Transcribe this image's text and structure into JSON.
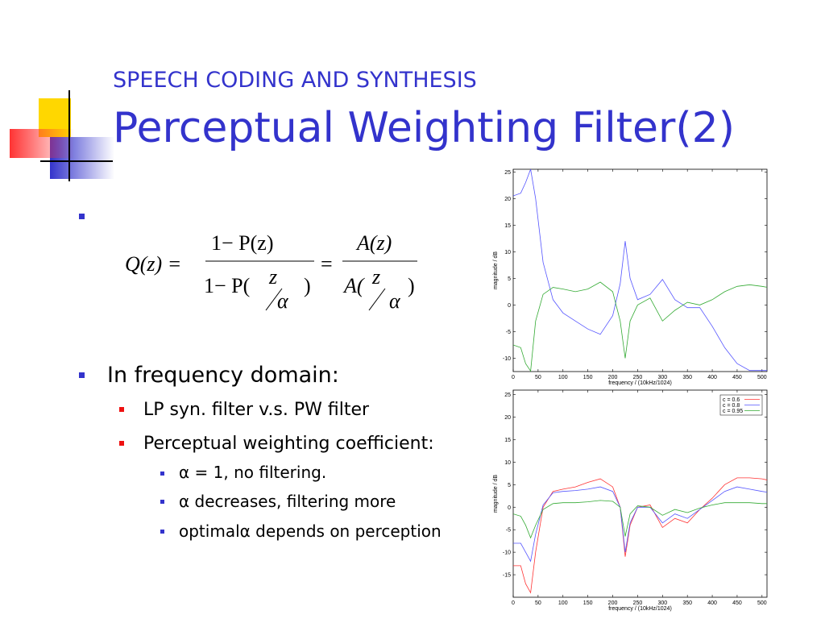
{
  "slide": {
    "subtitle": "SPEECH CODING AND SYNTHESIS",
    "title": "Perceptual Weighting Filter(2)",
    "formula": {
      "lhs": "Q(z) =",
      "num1": "1− P(z)",
      "den1_left": "1− P(",
      "z": "z",
      "alpha": "α",
      "close": ")",
      "eq": "=",
      "num2": "A(z)",
      "den2_left": "A("
    },
    "bullets": [
      {
        "text": "In frequency domain:",
        "children": [
          {
            "text": "LP syn. filter v.s. PW filter"
          },
          {
            "text": "Perceptual weighting coefficient:",
            "children": [
              {
                "text": "α = 1, no filtering."
              },
              {
                "text": "α decreases, filtering more"
              },
              {
                "text": "optimalα depends on perception"
              }
            ]
          }
        ]
      }
    ]
  },
  "chart_data": [
    {
      "type": "line",
      "xlabel": "frequency / (10kHz/1024)",
      "ylabel": "magnitude / dB",
      "x": [
        0,
        15,
        25,
        35,
        45,
        60,
        80,
        100,
        125,
        150,
        175,
        200,
        215,
        225,
        235,
        250,
        275,
        300,
        325,
        350,
        375,
        400,
        425,
        450,
        475,
        500,
        512
      ],
      "series": [
        {
          "color": "#5555ff",
          "values": [
            20.5,
            21,
            23,
            25.5,
            20,
            8,
            1,
            -1.5,
            -3,
            -4.5,
            -5.5,
            -2,
            4,
            12,
            5,
            1,
            2,
            4.8,
            1,
            -0.5,
            -0.5,
            -4,
            -8,
            -11,
            -12.3,
            -12.3,
            -12.3
          ]
        },
        {
          "color": "#33aa33",
          "values": [
            -7.5,
            -8,
            -11,
            -12.4,
            -3,
            2,
            3.3,
            3,
            2.5,
            3,
            4.3,
            2.5,
            -3,
            -10,
            -3,
            0,
            1.3,
            -3,
            -1,
            0.5,
            0,
            1,
            2.5,
            3.5,
            3.8,
            3.5,
            3.3
          ]
        }
      ],
      "xlim": [
        0,
        510
      ],
      "ylim": [
        -12.5,
        25.5
      ],
      "xticks": [
        0,
        50,
        100,
        150,
        200,
        250,
        300,
        350,
        400,
        450,
        500
      ],
      "yticks": [
        -10,
        -5,
        0,
        5,
        10,
        15,
        20,
        25
      ]
    },
    {
      "type": "line",
      "xlabel": "frequency / (10kHz/1024)",
      "ylabel": "magnitude / dB",
      "x": [
        0,
        15,
        25,
        35,
        45,
        60,
        80,
        100,
        125,
        150,
        175,
        200,
        215,
        225,
        235,
        250,
        275,
        300,
        325,
        350,
        375,
        400,
        425,
        450,
        475,
        500,
        512
      ],
      "series": [
        {
          "name": "c = 0.6",
          "color": "#ff3333",
          "values": [
            -13,
            -13,
            -17,
            -19,
            -10,
            0,
            3.5,
            4,
            4.5,
            5.5,
            6.3,
            4.5,
            0,
            -11,
            -4,
            0,
            0.5,
            -4.5,
            -2.5,
            -3.5,
            -0.5,
            2,
            5,
            6.5,
            6.5,
            6.3,
            6
          ]
        },
        {
          "name": "c = 0.8",
          "color": "#5555ff",
          "values": [
            -8,
            -8,
            -10,
            -12,
            -6,
            0.5,
            3.2,
            3.5,
            3.7,
            4,
            4.5,
            3.5,
            0,
            -10,
            -3.5,
            0,
            0,
            -3.5,
            -1.5,
            -2.5,
            -0.5,
            1.5,
            3.5,
            4.5,
            4,
            3.5,
            3.3
          ]
        },
        {
          "name": "c = 0.95",
          "color": "#33aa33",
          "values": [
            -1.5,
            -2,
            -4,
            -6.8,
            -4,
            -0.5,
            0.8,
            1,
            1,
            1.2,
            1.5,
            1.3,
            0,
            -6.5,
            -1.5,
            0.3,
            0,
            -1.8,
            -0.5,
            -1.2,
            -0.2,
            0.5,
            1,
            1,
            1,
            0.8,
            0.8
          ]
        }
      ],
      "xlim": [
        0,
        510
      ],
      "ylim": [
        -20,
        26
      ],
      "legend": "upper right",
      "xticks": [
        0,
        50,
        100,
        150,
        200,
        250,
        300,
        350,
        400,
        450,
        500
      ],
      "yticks": [
        -15,
        -10,
        -5,
        0,
        5,
        10,
        15,
        20,
        25
      ]
    }
  ]
}
